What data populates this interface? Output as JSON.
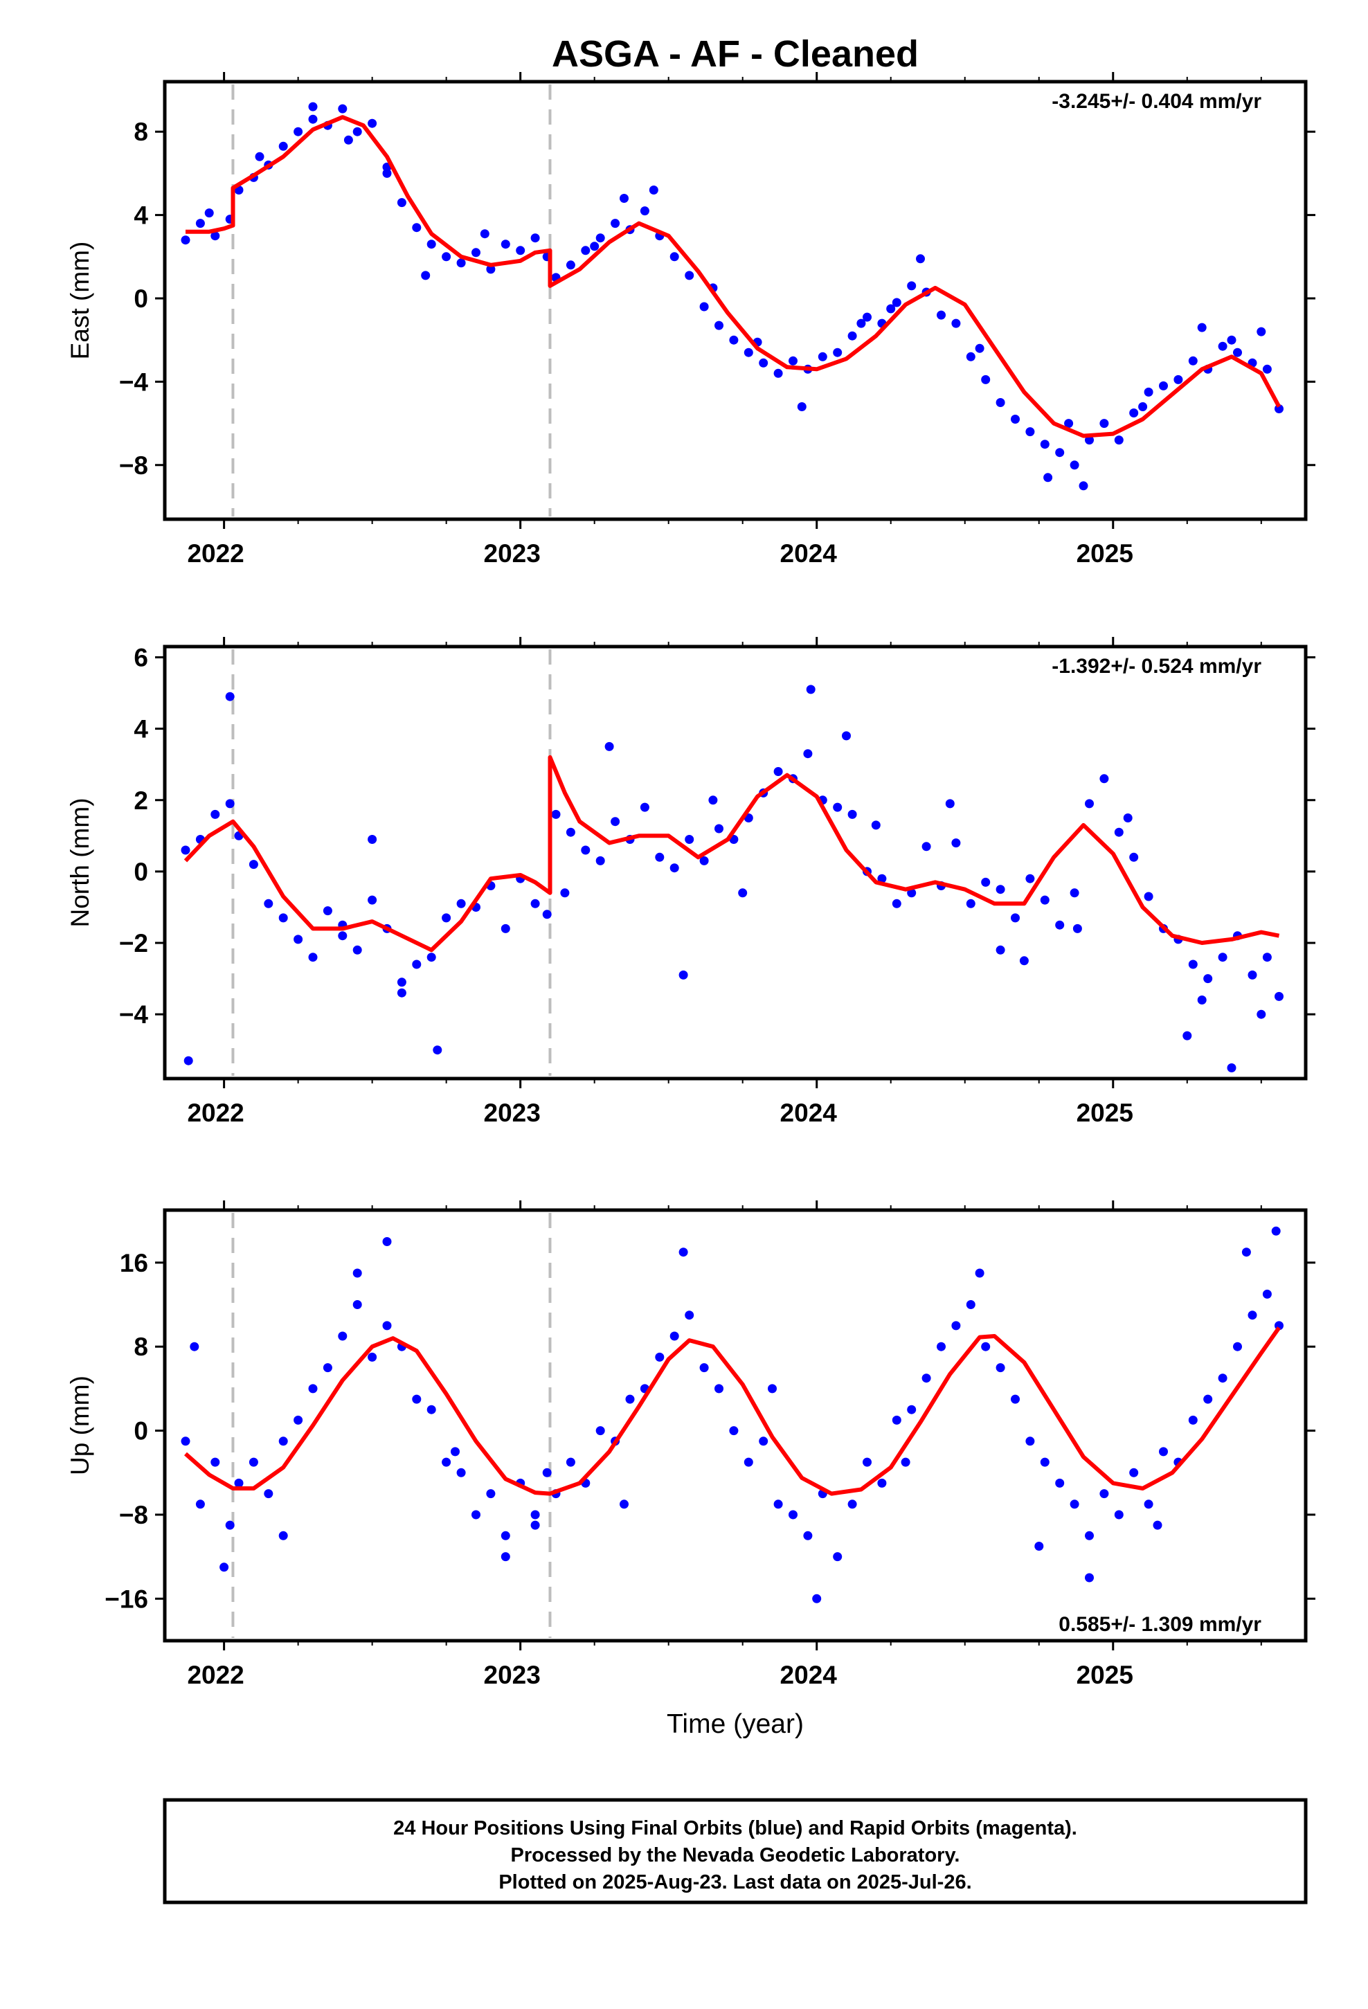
{
  "figure": {
    "title": "ASGA  - AF - Cleaned",
    "xlabel": "Time (year)",
    "footer": [
      "24 Hour Positions Using Final Orbits (blue) and Rapid Orbits (magenta).",
      "Processed by the Nevada Geodetic Laboratory.",
      "Plotted on 2025-Aug-23. Last data on 2025-Jul-26."
    ]
  },
  "colors": {
    "points": "#0000ff",
    "model": "#ff0000",
    "steps": "#bdbdbd",
    "axes": "#000000"
  },
  "chart_data": [
    {
      "type": "scatter",
      "ylabel": "East (mm)",
      "rate_label": "-3.245+/- 0.404 mm/yr",
      "rate_position": "top-right",
      "xlim": [
        2021.8,
        2025.65
      ],
      "ylim": [
        -10.6,
        10.4
      ],
      "xticks": [
        2022,
        2023,
        2024,
        2025
      ],
      "xtick_labels": [
        "2022",
        "2023",
        "2024",
        "2025"
      ],
      "yticks": [
        -8,
        -4,
        0,
        4,
        8
      ],
      "ytick_labels": [
        "−8",
        "−4",
        "0",
        "4",
        "8"
      ],
      "steps": [
        2022.03,
        2023.1
      ],
      "grid": false,
      "series": [
        {
          "kind": "points",
          "x": [
            2021.87,
            2021.92,
            2021.97,
            2022.02,
            2022.05,
            2022.1,
            2022.15,
            2022.2,
            2022.25,
            2022.3,
            2022.35,
            2022.4,
            2022.45,
            2022.5,
            2022.55,
            2022.6,
            2022.65,
            2022.7,
            2022.75,
            2022.8,
            2022.85,
            2022.9,
            2022.95,
            2023.0,
            2023.05,
            2023.09,
            2023.12,
            2023.17,
            2023.22,
            2023.27,
            2023.32,
            2023.37,
            2023.42,
            2023.47,
            2023.52,
            2023.57,
            2023.62,
            2023.67,
            2023.72,
            2023.77,
            2023.82,
            2023.87,
            2023.92,
            2023.97,
            2024.02,
            2024.07,
            2024.12,
            2024.17,
            2024.22,
            2024.27,
            2024.32,
            2024.37,
            2024.42,
            2024.47,
            2024.52,
            2024.57,
            2024.62,
            2024.67,
            2024.72,
            2024.77,
            2024.82,
            2024.87,
            2024.92,
            2024.97,
            2025.02,
            2025.07,
            2025.12,
            2025.17,
            2025.22,
            2025.27,
            2025.32,
            2025.37,
            2025.42,
            2025.47,
            2025.52,
            2025.56,
            2021.95,
            2022.12,
            2022.42,
            2022.68,
            2022.88,
            2023.25,
            2023.45,
            2023.65,
            2023.95,
            2024.15,
            2024.35,
            2024.55,
            2024.78,
            2024.9,
            2025.1,
            2025.3,
            2025.5,
            2022.3,
            2022.55,
            2023.35,
            2023.8,
            2024.25,
            2024.85,
            2025.4
          ],
          "y": [
            2.8,
            3.6,
            3.0,
            3.8,
            5.2,
            5.8,
            6.4,
            7.3,
            8.0,
            8.6,
            8.3,
            9.1,
            8.0,
            8.4,
            6.3,
            4.6,
            3.4,
            2.6,
            2.0,
            1.7,
            2.2,
            1.4,
            2.6,
            2.3,
            2.9,
            2.0,
            1.0,
            1.6,
            2.3,
            2.9,
            3.6,
            3.3,
            4.2,
            3.0,
            2.0,
            1.1,
            -0.4,
            -1.3,
            -2.0,
            -2.6,
            -3.1,
            -3.6,
            -3.0,
            -3.4,
            -2.8,
            -2.6,
            -1.8,
            -0.9,
            -1.2,
            -0.2,
            0.6,
            0.3,
            -0.8,
            -1.2,
            -2.8,
            -3.9,
            -5.0,
            -5.8,
            -6.4,
            -7.0,
            -7.4,
            -8.0,
            -6.8,
            -6.0,
            -6.8,
            -5.5,
            -4.5,
            -4.2,
            -3.9,
            -3.0,
            -3.4,
            -2.3,
            -2.6,
            -3.1,
            -3.4,
            -5.3,
            4.1,
            6.8,
            7.6,
            1.1,
            3.1,
            2.5,
            5.2,
            0.5,
            -5.2,
            -1.2,
            1.9,
            -2.4,
            -8.6,
            -9.0,
            -5.2,
            -1.4,
            -1.6,
            9.2,
            6.0,
            4.8,
            -2.1,
            -0.5,
            -6.0,
            -2.0
          ]
        },
        {
          "kind": "model",
          "x": [
            2021.87,
            2021.95,
            2022.0,
            2022.03,
            2022.03,
            2022.1,
            2022.2,
            2022.3,
            2022.4,
            2022.47,
            2022.55,
            2022.62,
            2022.7,
            2022.8,
            2022.9,
            2023.0,
            2023.05,
            2023.1,
            2023.1,
            2023.2,
            2023.3,
            2023.4,
            2023.5,
            2023.6,
            2023.7,
            2023.8,
            2023.9,
            2024.0,
            2024.1,
            2024.2,
            2024.3,
            2024.4,
            2024.5,
            2024.6,
            2024.7,
            2024.8,
            2024.9,
            2025.0,
            2025.1,
            2025.2,
            2025.3,
            2025.4,
            2025.5,
            2025.56
          ],
          "y": [
            3.2,
            3.2,
            3.35,
            3.5,
            5.3,
            5.9,
            6.8,
            8.1,
            8.7,
            8.3,
            6.8,
            4.9,
            3.1,
            2.0,
            1.6,
            1.8,
            2.2,
            2.3,
            0.6,
            1.4,
            2.7,
            3.6,
            3.0,
            1.3,
            -0.7,
            -2.4,
            -3.3,
            -3.4,
            -2.9,
            -1.8,
            -0.3,
            0.5,
            -0.3,
            -2.4,
            -4.5,
            -6.0,
            -6.6,
            -6.5,
            -5.8,
            -4.6,
            -3.4,
            -2.8,
            -3.6,
            -5.2
          ]
        }
      ]
    },
    {
      "type": "scatter",
      "ylabel": "North (mm)",
      "rate_label": "-1.392+/- 0.524 mm/yr",
      "rate_position": "top-right",
      "xlim": [
        2021.8,
        2025.65
      ],
      "ylim": [
        -5.8,
        6.3
      ],
      "xticks": [
        2022,
        2023,
        2024,
        2025
      ],
      "xtick_labels": [
        "2022",
        "2023",
        "2024",
        "2025"
      ],
      "yticks": [
        -4,
        -2,
        0,
        2,
        4,
        6
      ],
      "ytick_labels": [
        "−4",
        "−2",
        "0",
        "2",
        "4",
        "6"
      ],
      "steps": [
        2022.03,
        2023.1
      ],
      "grid": false,
      "series": [
        {
          "kind": "points",
          "x": [
            2021.87,
            2021.92,
            2021.97,
            2022.02,
            2022.05,
            2022.1,
            2022.15,
            2022.2,
            2022.25,
            2022.3,
            2022.35,
            2022.4,
            2022.45,
            2022.5,
            2022.55,
            2022.6,
            2022.65,
            2022.7,
            2022.75,
            2022.8,
            2022.85,
            2022.9,
            2022.95,
            2023.0,
            2023.05,
            2023.09,
            2023.12,
            2023.17,
            2023.22,
            2023.27,
            2023.32,
            2023.37,
            2023.42,
            2023.47,
            2023.52,
            2023.57,
            2023.62,
            2023.67,
            2023.72,
            2023.77,
            2023.82,
            2023.87,
            2023.92,
            2023.97,
            2024.02,
            2024.07,
            2024.12,
            2024.17,
            2024.22,
            2024.27,
            2024.32,
            2024.37,
            2024.42,
            2024.47,
            2024.52,
            2024.57,
            2024.62,
            2024.67,
            2024.72,
            2024.77,
            2024.82,
            2024.87,
            2024.92,
            2024.97,
            2025.02,
            2025.07,
            2025.12,
            2025.17,
            2025.22,
            2025.27,
            2025.32,
            2025.37,
            2025.42,
            2025.47,
            2025.52,
            2025.56,
            2021.88,
            2022.02,
            2022.4,
            2022.6,
            2022.72,
            2023.3,
            2023.55,
            2023.75,
            2023.98,
            2024.2,
            2024.45,
            2024.62,
            2024.88,
            2025.05,
            2025.3,
            2025.4,
            2025.5,
            2022.5,
            2023.15,
            2023.65,
            2024.1,
            2024.7,
            2025.25
          ],
          "y": [
            0.6,
            0.9,
            1.6,
            1.9,
            1.0,
            0.2,
            -0.9,
            -1.3,
            -1.9,
            -2.4,
            -1.1,
            -1.5,
            -2.2,
            -0.8,
            -1.6,
            -3.1,
            -2.6,
            -2.4,
            -1.3,
            -0.9,
            -1.0,
            -0.4,
            -1.6,
            -0.2,
            -0.9,
            -1.2,
            1.6,
            1.1,
            0.6,
            0.3,
            1.4,
            0.9,
            1.8,
            0.4,
            0.1,
            0.9,
            0.3,
            1.2,
            0.9,
            1.5,
            2.2,
            2.8,
            2.6,
            3.3,
            2.0,
            1.8,
            1.6,
            0.0,
            -0.2,
            -0.9,
            -0.6,
            0.7,
            -0.4,
            0.8,
            -0.9,
            -0.3,
            -0.5,
            -1.3,
            -0.2,
            -0.8,
            -1.5,
            -0.6,
            1.9,
            2.6,
            1.1,
            0.4,
            -0.7,
            -1.6,
            -1.9,
            -2.6,
            -3.0,
            -2.4,
            -1.8,
            -2.9,
            -2.4,
            -3.5,
            -5.3,
            4.9,
            -1.8,
            -3.4,
            -5.0,
            3.5,
            -2.9,
            -0.6,
            5.1,
            1.3,
            1.9,
            -2.2,
            -1.6,
            1.5,
            -3.6,
            -5.5,
            -4.0,
            0.9,
            -0.6,
            2.0,
            3.8,
            -2.5,
            -4.6
          ]
        },
        {
          "kind": "model",
          "x": [
            2021.87,
            2021.95,
            2022.03,
            2022.1,
            2022.2,
            2022.3,
            2022.4,
            2022.5,
            2022.6,
            2022.7,
            2022.8,
            2022.9,
            2023.0,
            2023.05,
            2023.1,
            2023.1,
            2023.15,
            2023.2,
            2023.3,
            2023.4,
            2023.5,
            2023.6,
            2023.7,
            2023.8,
            2023.9,
            2024.0,
            2024.1,
            2024.2,
            2024.3,
            2024.4,
            2024.5,
            2024.6,
            2024.7,
            2024.8,
            2024.9,
            2025.0,
            2025.1,
            2025.2,
            2025.3,
            2025.4,
            2025.5,
            2025.56
          ],
          "y": [
            0.3,
            1.0,
            1.4,
            0.7,
            -0.7,
            -1.6,
            -1.6,
            -1.4,
            -1.8,
            -2.2,
            -1.4,
            -0.2,
            -0.1,
            -0.3,
            -0.6,
            3.2,
            2.2,
            1.4,
            0.8,
            1.0,
            1.0,
            0.4,
            0.9,
            2.1,
            2.7,
            2.1,
            0.6,
            -0.3,
            -0.5,
            -0.3,
            -0.5,
            -0.9,
            -0.9,
            0.4,
            1.3,
            0.5,
            -1.0,
            -1.8,
            -2.0,
            -1.9,
            -1.7,
            -1.8
          ]
        }
      ]
    },
    {
      "type": "scatter",
      "ylabel": "Up (mm)",
      "rate_label": "0.585+/- 1.309 mm/yr",
      "rate_position": "bottom-right",
      "xlim": [
        2021.8,
        2025.65
      ],
      "ylim": [
        -20,
        21
      ],
      "xticks": [
        2022,
        2023,
        2024,
        2025
      ],
      "xtick_labels": [
        "2022",
        "2023",
        "2024",
        "2025"
      ],
      "yticks": [
        -16,
        -8,
        0,
        8,
        16
      ],
      "ytick_labels": [
        "−16",
        "−8",
        "0",
        "8",
        "16"
      ],
      "steps": [
        2022.03,
        2023.1
      ],
      "grid": false,
      "series": [
        {
          "kind": "points",
          "x": [
            2021.87,
            2021.92,
            2021.97,
            2022.02,
            2022.05,
            2022.1,
            2022.15,
            2022.2,
            2022.25,
            2022.3,
            2022.35,
            2022.4,
            2022.45,
            2022.5,
            2022.55,
            2022.6,
            2022.65,
            2022.7,
            2022.75,
            2022.8,
            2022.85,
            2022.9,
            2022.95,
            2023.0,
            2023.05,
            2023.09,
            2023.12,
            2023.17,
            2023.22,
            2023.27,
            2023.32,
            2023.37,
            2023.42,
            2023.47,
            2023.52,
            2023.57,
            2023.62,
            2023.67,
            2023.72,
            2023.77,
            2023.82,
            2023.87,
            2023.92,
            2023.97,
            2024.02,
            2024.07,
            2024.12,
            2024.17,
            2024.22,
            2024.27,
            2024.32,
            2024.37,
            2024.42,
            2024.47,
            2024.52,
            2024.57,
            2024.62,
            2024.67,
            2024.72,
            2024.77,
            2024.82,
            2024.87,
            2024.92,
            2024.97,
            2025.02,
            2025.07,
            2025.12,
            2025.17,
            2025.22,
            2025.27,
            2025.32,
            2025.37,
            2025.42,
            2025.47,
            2025.52,
            2025.56,
            2021.9,
            2022.0,
            2022.2,
            2022.45,
            2022.55,
            2022.78,
            2022.95,
            2023.05,
            2023.35,
            2023.55,
            2023.85,
            2024.0,
            2024.3,
            2024.55,
            2024.75,
            2024.92,
            2025.15,
            2025.45,
            2025.55
          ],
          "y": [
            -1.0,
            -7.0,
            -3.0,
            -9.0,
            -5.0,
            -3.0,
            -6.0,
            -1.0,
            1.0,
            4.0,
            6.0,
            9.0,
            12.0,
            7.0,
            10.0,
            8.0,
            3.0,
            2.0,
            -3.0,
            -4.0,
            -8.0,
            -6.0,
            -10.0,
            -5.0,
            -8.0,
            -4.0,
            -6.0,
            -3.0,
            -5.0,
            0.0,
            -1.0,
            3.0,
            4.0,
            7.0,
            9.0,
            11.0,
            6.0,
            4.0,
            0.0,
            -3.0,
            -1.0,
            -7.0,
            -8.0,
            -10.0,
            -6.0,
            -12.0,
            -7.0,
            -3.0,
            -5.0,
            1.0,
            2.0,
            5.0,
            8.0,
            10.0,
            12.0,
            8.0,
            6.0,
            3.0,
            -1.0,
            -3.0,
            -5.0,
            -7.0,
            -10.0,
            -6.0,
            -8.0,
            -4.0,
            -7.0,
            -2.0,
            -3.0,
            1.0,
            3.0,
            5.0,
            8.0,
            11.0,
            13.0,
            10.0,
            8.0,
            -13.0,
            -10.0,
            15.0,
            18.0,
            -2.0,
            -12.0,
            -9.0,
            -7.0,
            17.0,
            4.0,
            -16.0,
            -3.0,
            15.0,
            -11.0,
            -14.0,
            -9.0,
            17.0,
            19.0
          ]
        },
        {
          "kind": "model",
          "x": [
            2021.87,
            2021.95,
            2022.03,
            2022.1,
            2022.2,
            2022.3,
            2022.4,
            2022.5,
            2022.57,
            2022.65,
            2022.75,
            2022.85,
            2022.95,
            2023.05,
            2023.1,
            2023.2,
            2023.3,
            2023.4,
            2023.5,
            2023.57,
            2023.65,
            2023.75,
            2023.85,
            2023.95,
            2024.05,
            2024.15,
            2024.25,
            2024.35,
            2024.45,
            2024.55,
            2024.6,
            2024.7,
            2024.8,
            2024.9,
            2025.0,
            2025.1,
            2025.2,
            2025.3,
            2025.4,
            2025.5,
            2025.56
          ],
          "y": [
            -2.2,
            -4.2,
            -5.5,
            -5.5,
            -3.5,
            0.5,
            4.8,
            8.0,
            8.8,
            7.6,
            3.5,
            -1.0,
            -4.6,
            -5.9,
            -6.0,
            -5.0,
            -2.0,
            2.3,
            6.8,
            8.6,
            8.0,
            4.4,
            -0.6,
            -4.5,
            -6.0,
            -5.6,
            -3.5,
            0.8,
            5.4,
            8.9,
            9.0,
            6.5,
            2.0,
            -2.5,
            -5.0,
            -5.5,
            -4.0,
            -0.8,
            3.3,
            7.4,
            9.8
          ]
        }
      ]
    }
  ]
}
